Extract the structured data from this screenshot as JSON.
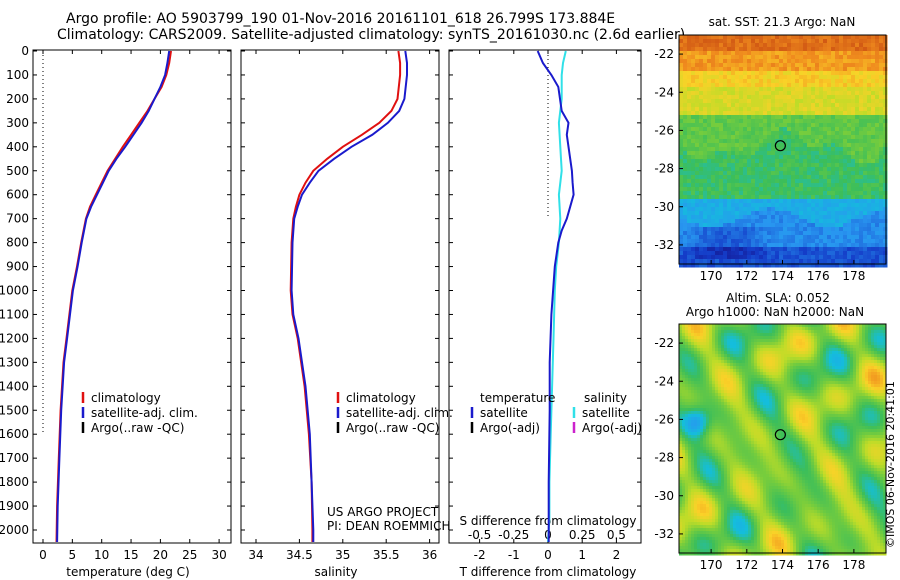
{
  "header": {
    "line1": "Argo profile: AO 5903799_190 01-Nov-2016 20161101_618 26.799S 173.884E",
    "line2": "Climatology: CARS2009. Satellite-adjusted climatology: synTS_20161030.nc (2.6d earlier)"
  },
  "footer_note": [
    "US ARGO PROJECT",
    "PI: DEAN ROEMMICH"
  ],
  "stamp": "©IMOS 06-Nov-2016 20:41:01",
  "colors": {
    "climatology": "#e01010",
    "satellite": "#1a1acc",
    "argo": "#000000",
    "sat_salinity": "#30e0e8",
    "argo_salinity": "#cc22cc"
  },
  "chart_data": [
    {
      "type": "line",
      "id": "temperature",
      "xlabel": "temperature (deg C)",
      "xlim": [
        -2,
        31
      ],
      "ylim": [
        2050,
        0
      ],
      "xticks": [
        0,
        5,
        10,
        15,
        20,
        25,
        30
      ],
      "yticks": [
        0,
        100,
        200,
        300,
        400,
        500,
        600,
        700,
        800,
        900,
        1000,
        1100,
        1200,
        1300,
        1400,
        1500,
        1600,
        1700,
        1800,
        1900,
        2000
      ],
      "legend": [
        "climatology",
        "satellite-adj. clim.",
        "Argo(..raw -QC)"
      ],
      "series": [
        {
          "name": "climatology",
          "color": "#e01010",
          "x": [
            21.8,
            21.5,
            21.0,
            20.2,
            19.0,
            17.8,
            16.4,
            15.0,
            13.6,
            12.3,
            11.0,
            10.0,
            9.0,
            8.0,
            7.3,
            6.5,
            5.8,
            5.0,
            4.5,
            4.0,
            3.5,
            3.0,
            2.7,
            2.4,
            2.3
          ],
          "y": [
            0,
            50,
            100,
            150,
            200,
            250,
            300,
            350,
            400,
            450,
            500,
            550,
            600,
            650,
            700,
            800,
            900,
            1000,
            1100,
            1200,
            1300,
            1500,
            1700,
            1900,
            2050
          ]
        },
        {
          "name": "satellite-adj. clim.",
          "color": "#1a1acc",
          "x": [
            21.5,
            21.2,
            20.8,
            20.0,
            19.0,
            18.0,
            16.8,
            15.4,
            14.0,
            12.5,
            11.2,
            10.2,
            9.2,
            8.2,
            7.4,
            6.6,
            5.9,
            5.1,
            4.6,
            4.1,
            3.6,
            3.1,
            2.8,
            2.5,
            2.4
          ],
          "y": [
            0,
            50,
            100,
            150,
            200,
            250,
            300,
            350,
            400,
            450,
            500,
            550,
            600,
            650,
            700,
            800,
            900,
            1000,
            1100,
            1200,
            1300,
            1500,
            1700,
            1900,
            2050
          ]
        },
        {
          "name": "Argo(..raw -QC)",
          "color": "#000000",
          "x": [],
          "y": []
        }
      ],
      "reference_line": {
        "x": 0,
        "y": [
          0,
          1600
        ],
        "style": "dotted"
      }
    },
    {
      "type": "line",
      "id": "salinity",
      "xlabel": "salinity",
      "xlim": [
        33.75,
        36.15
      ],
      "ylim": [
        2050,
        0
      ],
      "xticks": [
        34,
        34.5,
        35,
        35.5,
        36
      ],
      "xticklabels": [
        "34",
        "34.5",
        "35",
        "35.5",
        "36"
      ],
      "legend": [
        "climatology",
        "satellite-adj. clim.",
        "Argo(..raw -QC)"
      ],
      "series": [
        {
          "name": "climatology",
          "color": "#e01010",
          "x": [
            35.64,
            35.66,
            35.66,
            35.63,
            35.56,
            35.42,
            35.22,
            35.0,
            34.82,
            34.66,
            34.57,
            34.5,
            34.46,
            34.43,
            34.41,
            34.4,
            34.42,
            34.48,
            34.56,
            34.61,
            34.64,
            34.65,
            34.65
          ],
          "y": [
            0,
            50,
            100,
            200,
            250,
            300,
            350,
            400,
            450,
            500,
            550,
            600,
            650,
            700,
            800,
            1000,
            1100,
            1200,
            1400,
            1600,
            1800,
            2000,
            2050
          ]
        },
        {
          "name": "satellite-adj. clim.",
          "color": "#1a1acc",
          "x": [
            35.72,
            35.74,
            35.74,
            35.71,
            35.65,
            35.52,
            35.34,
            35.1,
            34.9,
            34.72,
            34.62,
            34.53,
            34.48,
            34.44,
            34.42,
            34.41,
            34.43,
            34.49,
            34.57,
            34.62,
            34.64,
            34.66,
            34.66
          ],
          "y": [
            0,
            50,
            100,
            200,
            250,
            300,
            350,
            400,
            450,
            500,
            550,
            600,
            650,
            700,
            800,
            1000,
            1100,
            1200,
            1400,
            1600,
            1800,
            2000,
            2050
          ]
        },
        {
          "name": "Argo(..raw -QC)",
          "color": "#000000",
          "x": [],
          "y": []
        }
      ]
    },
    {
      "type": "line",
      "id": "difference",
      "xlabel": "T difference from climatology",
      "xlabel_top": "S difference from climatology",
      "xlim": [
        -2.7,
        2.7
      ],
      "ylim": [
        2050,
        0
      ],
      "xticks": [
        -2,
        -1,
        0,
        1,
        2
      ],
      "xticks_s": [
        -0.5,
        -0.25,
        0,
        0.25,
        0.5
      ],
      "xticklabels_s": [
        "-0.5",
        "-0.25",
        "0",
        "0.25",
        "0.5"
      ],
      "legend_left_title": "temperature",
      "legend_right_title": "salinity",
      "legend_left": [
        "satellite",
        "Argo(-adj)"
      ],
      "legend_right": [
        "satellite",
        "Argo(-adj)"
      ],
      "series": [
        {
          "name": "satellite",
          "quantity": "T",
          "color": "#1a1acc",
          "x": [
            -0.3,
            -0.15,
            0.1,
            0.3,
            0.35,
            0.4,
            0.6,
            0.55,
            0.6,
            0.65,
            0.7,
            0.72,
            0.75,
            0.65,
            0.55,
            0.4,
            0.3,
            0.2,
            0.15,
            0.1,
            0.05,
            0.05,
            0.02,
            0.02
          ],
          "y": [
            0,
            50,
            100,
            150,
            200,
            250,
            300,
            350,
            400,
            450,
            500,
            550,
            600,
            650,
            700,
            750,
            800,
            900,
            1000,
            1100,
            1300,
            1500,
            1800,
            2050
          ]
        },
        {
          "name": "satellite",
          "quantity": "S",
          "color": "#30e0e8",
          "x": [
            0.13,
            0.11,
            0.1,
            0.1,
            0.08,
            0.09,
            0.1,
            0.08,
            0.09,
            0.08,
            0.06,
            0.05,
            0.04,
            0.03,
            0.02,
            0.01,
            0.01,
            0.0
          ],
          "y": [
            0,
            50,
            100,
            200,
            300,
            400,
            500,
            600,
            700,
            800,
            900,
            1000,
            1200,
            1400,
            1600,
            1800,
            1950,
            2050
          ]
        }
      ],
      "reference_line": {
        "x": 0,
        "y": [
          0,
          700
        ],
        "style": "dotted"
      }
    },
    {
      "type": "heatmap",
      "id": "sst_map",
      "title": "sat. SST: 21.3 Argo: NaN",
      "xticks": [
        170,
        172,
        174,
        176,
        178
      ],
      "yticks": [
        -22,
        -24,
        -26,
        -28,
        -30,
        -32
      ],
      "xlim": [
        168.2,
        179.8
      ],
      "ylim": [
        -33,
        -21
      ],
      "marker": {
        "lon": 173.88,
        "lat": -26.8
      }
    },
    {
      "type": "heatmap",
      "id": "sla_map",
      "title_line1": "Altim. SLA: 0.052",
      "title_line2": "Argo h1000: NaN h2000: NaN",
      "xticks": [
        170,
        172,
        174,
        176,
        178
      ],
      "yticks": [
        -22,
        -24,
        -26,
        -28,
        -30,
        -32
      ],
      "xlim": [
        168.2,
        179.8
      ],
      "ylim": [
        -33,
        -21
      ],
      "marker": {
        "lon": 173.88,
        "lat": -26.8
      }
    }
  ]
}
